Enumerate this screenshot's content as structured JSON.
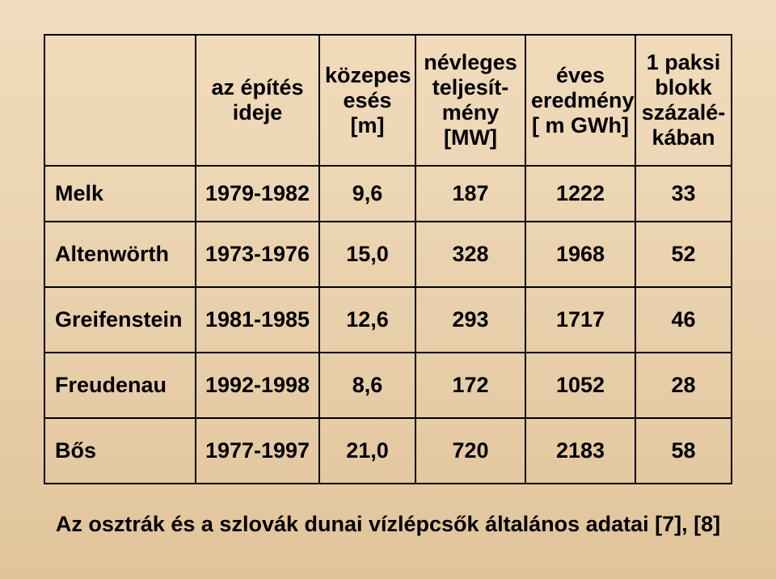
{
  "table": {
    "columns": [
      {
        "label": "",
        "width_pct": 22,
        "align": "left"
      },
      {
        "label": "az építés\nideje",
        "width_pct": 18,
        "align": "center"
      },
      {
        "label": "közepes\nesés\n[m]",
        "width_pct": 14,
        "align": "center"
      },
      {
        "label": "névleges\nteljesít-\nmény\n[MW]",
        "width_pct": 16,
        "align": "center"
      },
      {
        "label": "éves\neredmény\n[ m GWh]",
        "width_pct": 16,
        "align": "center"
      },
      {
        "label": "1 paksi\nblokk\nszázalé-\nkában",
        "width_pct": 14,
        "align": "center"
      }
    ],
    "rows": [
      {
        "name": "Melk",
        "period": "1979-1982",
        "fall_m": "9,6",
        "capacity_mw": "187",
        "annual_gwh": "1222",
        "paks_pct": "33"
      },
      {
        "name": "Altenwörth",
        "period": "1973-1976",
        "fall_m": "15,0",
        "capacity_mw": "328",
        "annual_gwh": "1968",
        "paks_pct": "52"
      },
      {
        "name": "Greifenstein",
        "period": "1981-1985",
        "fall_m": "12,6",
        "capacity_mw": "293",
        "annual_gwh": "1717",
        "paks_pct": "46"
      },
      {
        "name": "Freudenau",
        "period": "1992-1998",
        "fall_m": "8,6",
        "capacity_mw": "172",
        "annual_gwh": "1052",
        "paks_pct": "28"
      },
      {
        "name": "Bős",
        "period": "1977-1997",
        "fall_m": "21,0",
        "capacity_mw": "720",
        "annual_gwh": "2183",
        "paks_pct": "58"
      }
    ],
    "border_color": "#000000",
    "text_color": "#000000",
    "font_size_pt": 20,
    "font_weight": "bold"
  },
  "caption": "Az osztrák és a szlovák dunai vízlépcsők általános adatai [7], [8]",
  "style": {
    "background_gradient_top": "#f1dcbd",
    "background_gradient_bottom": "#e1c49b",
    "font_family": "Arial"
  }
}
